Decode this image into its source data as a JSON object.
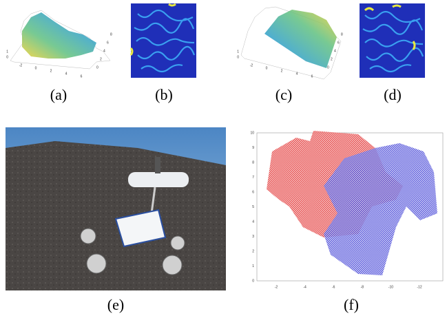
{
  "panels": [
    {
      "caption": "(a)",
      "xticks": [
        "-2",
        "0",
        "2",
        "4",
        "6"
      ],
      "yticks": [
        "0",
        "2",
        "4",
        "6",
        "8"
      ],
      "zticks": [
        "1",
        "0"
      ]
    },
    {
      "caption": "(b)"
    },
    {
      "caption": "(c)",
      "xticks": [
        "-2",
        "0",
        "2",
        "4",
        "6"
      ],
      "yticks": [
        "0",
        "2",
        "4",
        "6",
        "8"
      ],
      "zticks": [
        "1",
        "0"
      ]
    },
    {
      "caption": "(d)"
    },
    {
      "caption": "(e)"
    },
    {
      "caption": "(f)",
      "xticks": [
        "-2",
        "-4",
        "-6",
        "-8",
        "-10",
        "-12"
      ],
      "yticks": [
        "0",
        "1",
        "2",
        "3",
        "4",
        "5",
        "6",
        "7",
        "8",
        "9",
        "10"
      ]
    }
  ]
}
